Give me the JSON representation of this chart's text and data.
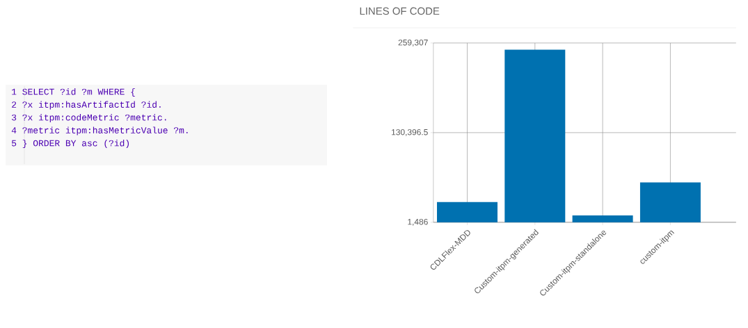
{
  "chart_data": [
    {
      "type": "other",
      "annotations": [
        "1 SELECT ?id ?m WHERE {",
        "2 ?x itpm:hasArtifactId ?id.",
        "3 ?x itpm:codeMetric ?metric.",
        "4 ?metric itpm:hasMetricValue ?m.",
        "5 } ORDER BY asc (?id)"
      ]
    },
    {
      "type": "bar",
      "title": "LINES OF CODE",
      "categories": [
        "CDLFlex-MDD",
        "Custom-itpm-generated",
        "Custom-itpm-standalone",
        "custom-itpm"
      ],
      "values": [
        30500,
        249600,
        11300,
        58800
      ],
      "color": "#0071b0",
      "ylim": [
        1486,
        259307
      ],
      "yticks": [
        {
          "value": 1486,
          "label": "1,486"
        },
        {
          "value": 130396.5,
          "label": "130,396.5"
        },
        {
          "value": 259307,
          "label": "259,307"
        }
      ],
      "grid": true
    }
  ]
}
